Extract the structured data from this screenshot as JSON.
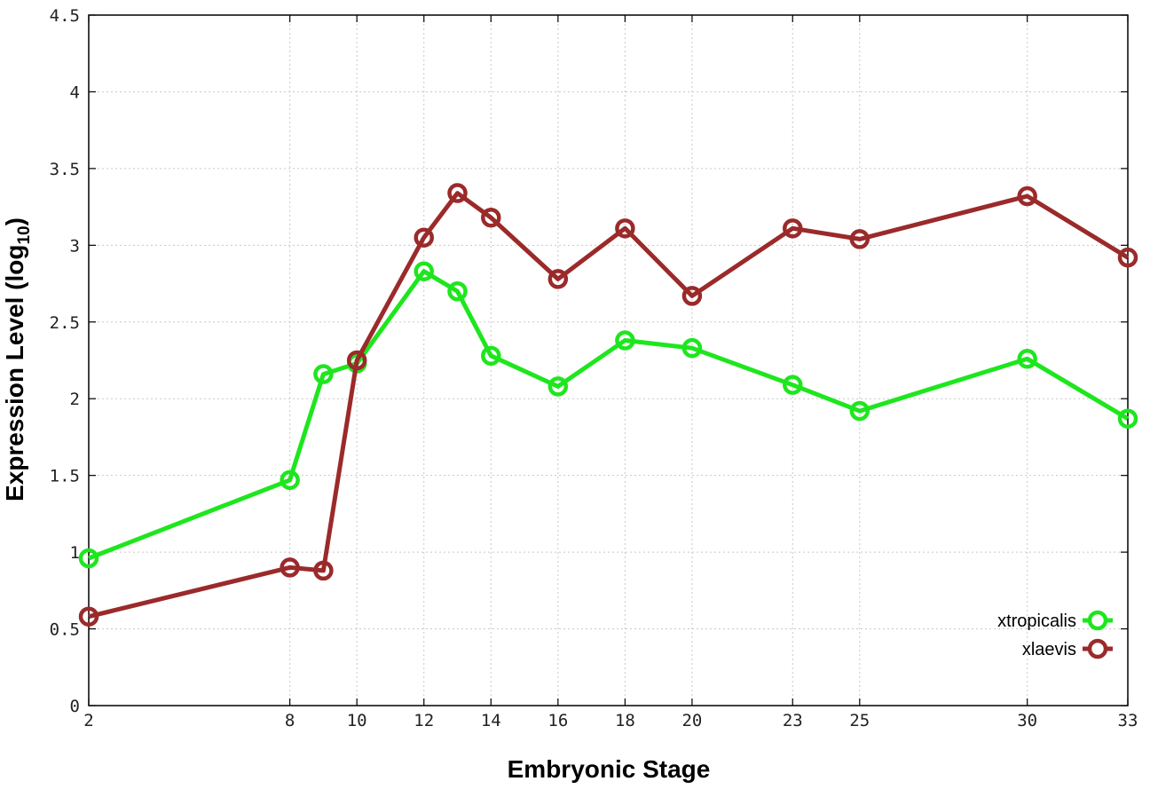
{
  "chart_data": {
    "type": "line",
    "title": "",
    "xlabel": "Embryonic Stage",
    "ylabel_main": "Expression Level (log",
    "ylabel_sub": "10",
    "ylabel_close": ")",
    "x": [
      2,
      8,
      9,
      10,
      12,
      13,
      14,
      16,
      18,
      20,
      23,
      25,
      30,
      33
    ],
    "xticks": [
      2,
      8,
      10,
      12,
      14,
      16,
      18,
      20,
      23,
      25,
      30,
      33
    ],
    "xtick_labels": [
      "2",
      "8",
      "10",
      "12",
      "14",
      "16",
      "18",
      "20",
      "23",
      "25",
      "30",
      "33"
    ],
    "xlim": [
      2,
      33
    ],
    "yticks": [
      0,
      0.5,
      1,
      1.5,
      2,
      2.5,
      3,
      3.5,
      4,
      4.5
    ],
    "ytick_labels": [
      "0",
      "0.5",
      "1",
      "1.5",
      "2",
      "2.5",
      "3",
      "3.5",
      "4",
      "4.5"
    ],
    "ylim": [
      0,
      4.5
    ],
    "grid": true,
    "legend_position": "bottom-right",
    "series": [
      {
        "name": "xtropicalis",
        "color": "#1ee61e",
        "marker": "open-circle",
        "values": [
          0.96,
          1.47,
          2.16,
          2.23,
          2.83,
          2.7,
          2.28,
          2.08,
          2.38,
          2.33,
          2.09,
          1.92,
          2.26,
          1.87
        ]
      },
      {
        "name": "xlaevis",
        "color": "#9b2a2a",
        "marker": "open-circle",
        "values": [
          0.58,
          0.9,
          0.88,
          2.25,
          3.05,
          3.34,
          3.18,
          2.78,
          3.11,
          2.67,
          3.11,
          3.04,
          3.32,
          2.92
        ]
      }
    ]
  }
}
